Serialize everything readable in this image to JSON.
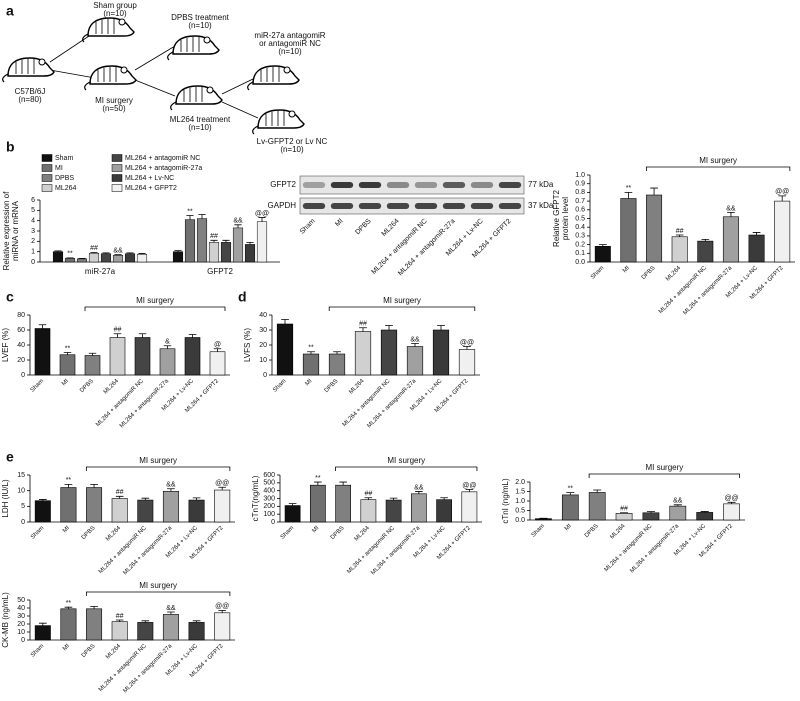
{
  "panel_labels": [
    "a",
    "b",
    "c",
    "d",
    "e"
  ],
  "diagram": {
    "nodes": [
      {
        "lines": [
          "C57B/6J",
          "(n=80)"
        ]
      },
      {
        "lines": [
          "Sham group",
          "(n=10)"
        ]
      },
      {
        "lines": [
          "MI surgery",
          "(n=50)"
        ]
      },
      {
        "lines": [
          "DPBS treatment",
          "(n=10)"
        ]
      },
      {
        "lines": [
          "ML264 treatment",
          "(n=10)"
        ]
      },
      {
        "lines": [
          "miR-27a antagomiR",
          "or antagomiR NC",
          "(n=10)"
        ]
      },
      {
        "lines": [
          "Lv-GFPT2 or Lv NC",
          "(n=10)"
        ]
      }
    ]
  },
  "blot": {
    "proteins": [
      "GFPT2",
      "GAPDH"
    ],
    "sizes": [
      "77 kDa",
      "37 kDa"
    ],
    "lanes": [
      "Sham",
      "MI",
      "DPBS",
      "ML264",
      "ML264 + antagomiR NC",
      "ML264 + antagomiR-27a",
      "ML264 + Lv-NC",
      "ML264 + GFPT2"
    ]
  },
  "chart_data": [
    {
      "type": "bar",
      "y_label": [
        "Relative expression of",
        "miRNA or mRNA"
      ],
      "categories": [
        "miR-27a",
        "GFPT2"
      ],
      "ylim": [
        0,
        6
      ],
      "yticks": [
        0,
        1,
        2,
        3,
        4,
        5,
        6
      ],
      "series": [
        {
          "name": "Sham",
          "color": "#111111",
          "values": [
            1.0,
            1.0
          ],
          "errors": [
            0.08,
            0.1
          ],
          "marks": [
            null,
            null
          ]
        },
        {
          "name": "MI",
          "color": "#707070",
          "values": [
            0.35,
            4.1
          ],
          "errors": [
            0.05,
            0.4
          ],
          "marks": [
            "**",
            "**"
          ]
        },
        {
          "name": "DPBS",
          "color": "#808080",
          "values": [
            0.3,
            4.2
          ],
          "errors": [
            0.05,
            0.4
          ],
          "marks": [
            null,
            null
          ]
        },
        {
          "name": "ML264",
          "color": "#d0d0d0",
          "values": [
            0.85,
            1.9
          ],
          "errors": [
            0.08,
            0.2
          ],
          "marks": [
            "##",
            "##"
          ]
        },
        {
          "name": "ML264 + antagomiR NC",
          "color": "#454545",
          "values": [
            0.8,
            1.9
          ],
          "errors": [
            0.08,
            0.2
          ],
          "marks": [
            null,
            null
          ]
        },
        {
          "name": "ML264 + antagomiR-27a",
          "color": "#a0a0a0",
          "values": [
            0.65,
            3.3
          ],
          "errors": [
            0.06,
            0.3
          ],
          "marks": [
            "&&",
            "&&"
          ]
        },
        {
          "name": "ML264 + Lv-NC",
          "color": "#3a3a3a",
          "values": [
            0.8,
            1.7
          ],
          "errors": [
            0.08,
            0.2
          ],
          "marks": [
            null,
            null
          ]
        },
        {
          "name": "ML264 + GFPT2",
          "color": "#f0f0f0",
          "values": [
            0.75,
            3.9
          ],
          "errors": [
            0.08,
            0.4
          ],
          "marks": [
            null,
            "@@"
          ]
        }
      ]
    },
    {
      "type": "bar",
      "y_label": [
        "Relative GFPT2",
        "protein level"
      ],
      "bracket_label": "MI surgery",
      "categories": [
        "Sham",
        "MI",
        "DPBS",
        "ML264",
        "ML264 + antagomiR NC",
        "ML264 + antagomiR-27a",
        "ML264 + Lv-NC",
        "ML264 + GFPT2"
      ],
      "values": [
        0.18,
        0.73,
        0.77,
        0.29,
        0.24,
        0.52,
        0.31,
        0.7
      ],
      "errors": [
        0.02,
        0.07,
        0.08,
        0.02,
        0.02,
        0.05,
        0.03,
        0.06
      ],
      "colors": [
        "#111111",
        "#707070",
        "#808080",
        "#d0d0d0",
        "#454545",
        "#a0a0a0",
        "#3a3a3a",
        "#f0f0f0"
      ],
      "marks": [
        null,
        "**",
        null,
        "##",
        null,
        "&&",
        null,
        "@@"
      ],
      "ylim": [
        0,
        1.0
      ],
      "yticks": [
        {
          "value": 0,
          "label": "0.0"
        },
        0.1,
        0.2,
        0.3,
        0.4,
        0.5,
        0.6,
        0.7,
        0.8,
        0.9,
        {
          "value": 1,
          "label": "1.0"
        }
      ]
    },
    {
      "type": "bar",
      "y_label": [
        "LVEF (%)"
      ],
      "bracket_label": "MI surgery",
      "categories": [
        "Sham",
        "MI",
        "DPBS",
        "ML264",
        "ML264 + antagomiR NC",
        "ML264 + antagomiR-27a",
        "ML264 + Lv-NC",
        "ML264 + GFPT2"
      ],
      "values": [
        62,
        27,
        26,
        50,
        50,
        35,
        50,
        31
      ],
      "errors": [
        5,
        3,
        3,
        5,
        5,
        4,
        4,
        4
      ],
      "colors": [
        "#111111",
        "#707070",
        "#808080",
        "#d0d0d0",
        "#454545",
        "#a0a0a0",
        "#3a3a3a",
        "#f0f0f0"
      ],
      "marks": [
        null,
        "**",
        null,
        "##",
        null,
        "&",
        null,
        "@"
      ],
      "ylim": [
        0,
        80
      ],
      "yticks": [
        0,
        20,
        40,
        60,
        80
      ]
    },
    {
      "type": "bar",
      "y_label": [
        "LVFS (%)"
      ],
      "bracket_label": "MI surgery",
      "categories": [
        "Sham",
        "MI",
        "DPBS",
        "ML264",
        "ML264 + antagomiR NC",
        "ML264 + antagomiR-27a",
        "ML264 + Lv-NC",
        "ML264 + GFPT2"
      ],
      "values": [
        34,
        14,
        14,
        29,
        30,
        19,
        30,
        17
      ],
      "errors": [
        3,
        1.5,
        1.5,
        2.5,
        3,
        2,
        3,
        2
      ],
      "colors": [
        "#111111",
        "#707070",
        "#808080",
        "#d0d0d0",
        "#454545",
        "#a0a0a0",
        "#3a3a3a",
        "#f0f0f0"
      ],
      "marks": [
        null,
        "**",
        null,
        "##",
        null,
        "&&",
        null,
        "@@"
      ],
      "ylim": [
        0,
        40
      ],
      "yticks": [
        0,
        10,
        20,
        30,
        40
      ]
    },
    {
      "type": "bar",
      "y_label": [
        "LDH (IU/L)"
      ],
      "bracket_label": "MI surgery",
      "categories": [
        "Sham",
        "MI",
        "DPBS",
        "ML264",
        "ML264 + antagomiR NC",
        "ML264 + antagomiR-27a",
        "ML264 + Lv-NC",
        "ML264 + GFPT2"
      ],
      "values": [
        6.8,
        11,
        11,
        7.5,
        7,
        9.8,
        7,
        10.2
      ],
      "errors": [
        0.4,
        1,
        1,
        0.7,
        0.6,
        0.8,
        0.7,
        0.9
      ],
      "colors": [
        "#111111",
        "#707070",
        "#808080",
        "#d0d0d0",
        "#454545",
        "#a0a0a0",
        "#3a3a3a",
        "#f0f0f0"
      ],
      "marks": [
        null,
        "**",
        null,
        "##",
        null,
        "&&",
        null,
        "@@"
      ],
      "ylim": [
        0,
        15
      ],
      "yticks": [
        0,
        5,
        10,
        15
      ]
    },
    {
      "type": "bar",
      "y_label": [
        "cTnT(ng/mL)"
      ],
      "bracket_label": "MI surgery",
      "categories": [
        "Sham",
        "MI",
        "DPBS",
        "ML264",
        "ML264 + antagomiR NC",
        "ML264 + antagomiR-27a",
        "ML264 + Lv-NC",
        "ML264 + GFPT2"
      ],
      "values": [
        210,
        470,
        470,
        285,
        280,
        360,
        285,
        385
      ],
      "errors": [
        25,
        40,
        40,
        25,
        25,
        30,
        25,
        30
      ],
      "colors": [
        "#111111",
        "#707070",
        "#808080",
        "#d0d0d0",
        "#454545",
        "#a0a0a0",
        "#3a3a3a",
        "#f0f0f0"
      ],
      "marks": [
        null,
        "**",
        null,
        "##",
        null,
        "&&",
        null,
        "@@"
      ],
      "ylim": [
        0,
        600
      ],
      "yticks": [
        0,
        100,
        200,
        300,
        400,
        500,
        600
      ]
    },
    {
      "type": "bar",
      "y_label": [
        "cTnI (ng/mL)"
      ],
      "bracket_label": "MI surgery",
      "categories": [
        "Sham",
        "MI",
        "DPBS",
        "ML264",
        "ML264 + antagomiR NC",
        "ML264 + antagomiR-27a",
        "ML264 + Lv-NC",
        "ML264 + GFPT2"
      ],
      "values": [
        0.07,
        1.32,
        1.45,
        0.35,
        0.38,
        0.73,
        0.4,
        0.85
      ],
      "errors": [
        0.02,
        0.12,
        0.13,
        0.03,
        0.06,
        0.07,
        0.05,
        0.08
      ],
      "colors": [
        "#111111",
        "#707070",
        "#808080",
        "#d0d0d0",
        "#454545",
        "#a0a0a0",
        "#3a3a3a",
        "#f0f0f0"
      ],
      "marks": [
        null,
        "**",
        null,
        "##",
        null,
        "&&",
        null,
        "@@"
      ],
      "ylim": [
        0,
        2.0
      ],
      "yticks": [
        {
          "value": 0,
          "label": "0.0"
        },
        0.5,
        {
          "value": 1,
          "label": "1.0"
        },
        1.5,
        {
          "value": 2,
          "label": "2.0"
        }
      ]
    },
    {
      "type": "bar",
      "y_label": [
        "CK-MB (ng/mL)"
      ],
      "bracket_label": "MI surgery",
      "categories": [
        "Sham",
        "MI",
        "DPBS",
        "ML264",
        "ML264 + antagomiR NC",
        "ML264 + antagomiR-27a",
        "ML264 + Lv-NC",
        "ML264 + GFPT2"
      ],
      "values": [
        18,
        39,
        39,
        23,
        22,
        32,
        22,
        34
      ],
      "errors": [
        3,
        2,
        3,
        2,
        2,
        3,
        2,
        3
      ],
      "colors": [
        "#111111",
        "#707070",
        "#808080",
        "#d0d0d0",
        "#454545",
        "#a0a0a0",
        "#3a3a3a",
        "#f0f0f0"
      ],
      "marks": [
        null,
        "**",
        null,
        "##",
        null,
        "&&",
        null,
        "@@"
      ],
      "ylim": [
        0,
        50
      ],
      "yticks": [
        0,
        10,
        20,
        30,
        40,
        50
      ]
    }
  ]
}
